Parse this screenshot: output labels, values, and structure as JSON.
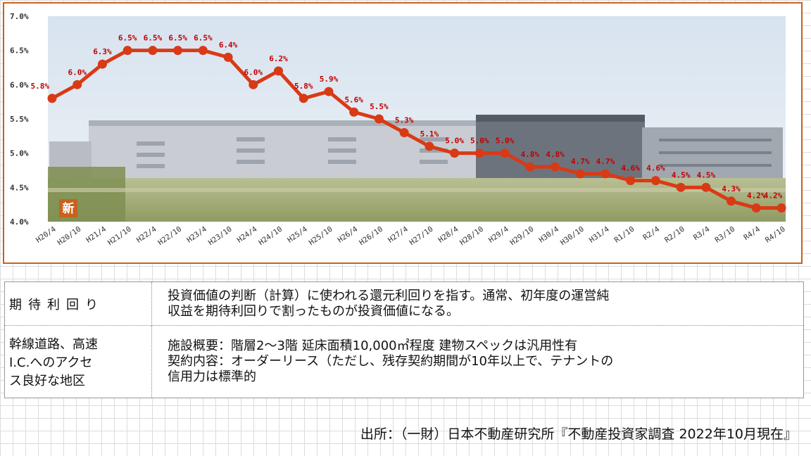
{
  "chart_data": {
    "type": "line",
    "categories": [
      "H20/4",
      "H20/10",
      "H21/4",
      "H21/10",
      "H22/4",
      "H22/10",
      "H23/4",
      "H23/10",
      "H24/4",
      "H24/10",
      "H25/4",
      "H25/10",
      "H26/4",
      "H26/10",
      "H27/4",
      "H27/10",
      "H28/4",
      "H28/10",
      "H29/4",
      "H29/10",
      "H30/4",
      "H30/10",
      "H31/4",
      "R1/10",
      "R2/4",
      "R2/10",
      "R3/4",
      "R3/10",
      "R4/4",
      "R4/10"
    ],
    "values": [
      5.8,
      6.0,
      6.3,
      6.5,
      6.5,
      6.5,
      6.5,
      6.4,
      6.0,
      6.2,
      5.8,
      5.9,
      5.6,
      5.5,
      5.3,
      5.1,
      5.0,
      5.0,
      5.0,
      4.8,
      4.8,
      4.7,
      4.7,
      4.6,
      4.6,
      4.5,
      4.5,
      4.3,
      4.2,
      4.2
    ],
    "value_labels": [
      "5.8%",
      "6.0%",
      "6.3%",
      "6.5%",
      "6.5%",
      "6.5%",
      "6.5%",
      "6.4%",
      "6.0%",
      "6.2%",
      "5.8%",
      "5.9%",
      "5.6%",
      "5.5%",
      "5.3%",
      "5.1%",
      "5.0%",
      "5.0%",
      "5.0%",
      "4.8%",
      "4.8%",
      "4.7%",
      "4.7%",
      "4.6%",
      "4.6%",
      "4.5%",
      "4.5%",
      "4.3%",
      "4.2%",
      "4.2%"
    ],
    "ylim": [
      4.0,
      7.0
    ],
    "yticks": [
      "7.0%",
      "6.5%",
      "6.0%",
      "5.5%",
      "5.0%",
      "4.5%",
      "4.0%"
    ],
    "ytick_values": [
      7.0,
      6.5,
      6.0,
      5.5,
      5.0,
      4.5,
      4.0
    ],
    "grid": false,
    "line_color": "#d93a16",
    "label_color": "#c00000",
    "badge": "新"
  },
  "table": {
    "row1": {
      "header": "期待利回り",
      "lines": [
        "投資価値の判断（計算）に使われる還元利回りを指す。通常、初年度の運営純",
        "収益を期待利回りで割ったものが投資価値になる。"
      ]
    },
    "row2": {
      "header_lines": [
        "幹線道路、高速",
        "I.C.へのアクセ",
        "ス良好な地区"
      ],
      "lines": [
        "施設概要：階層2～3階 延床面積10,000㎡程度 建物スペックは汎用性有",
        "契約内容：オーダーリース（ただし、残存契約期間が10年以上で、テナントの",
        "信用力は標準的"
      ]
    }
  },
  "source": "出所：（一財）日本不動産研究所『不動産投資家調査 2022年10月現在』"
}
